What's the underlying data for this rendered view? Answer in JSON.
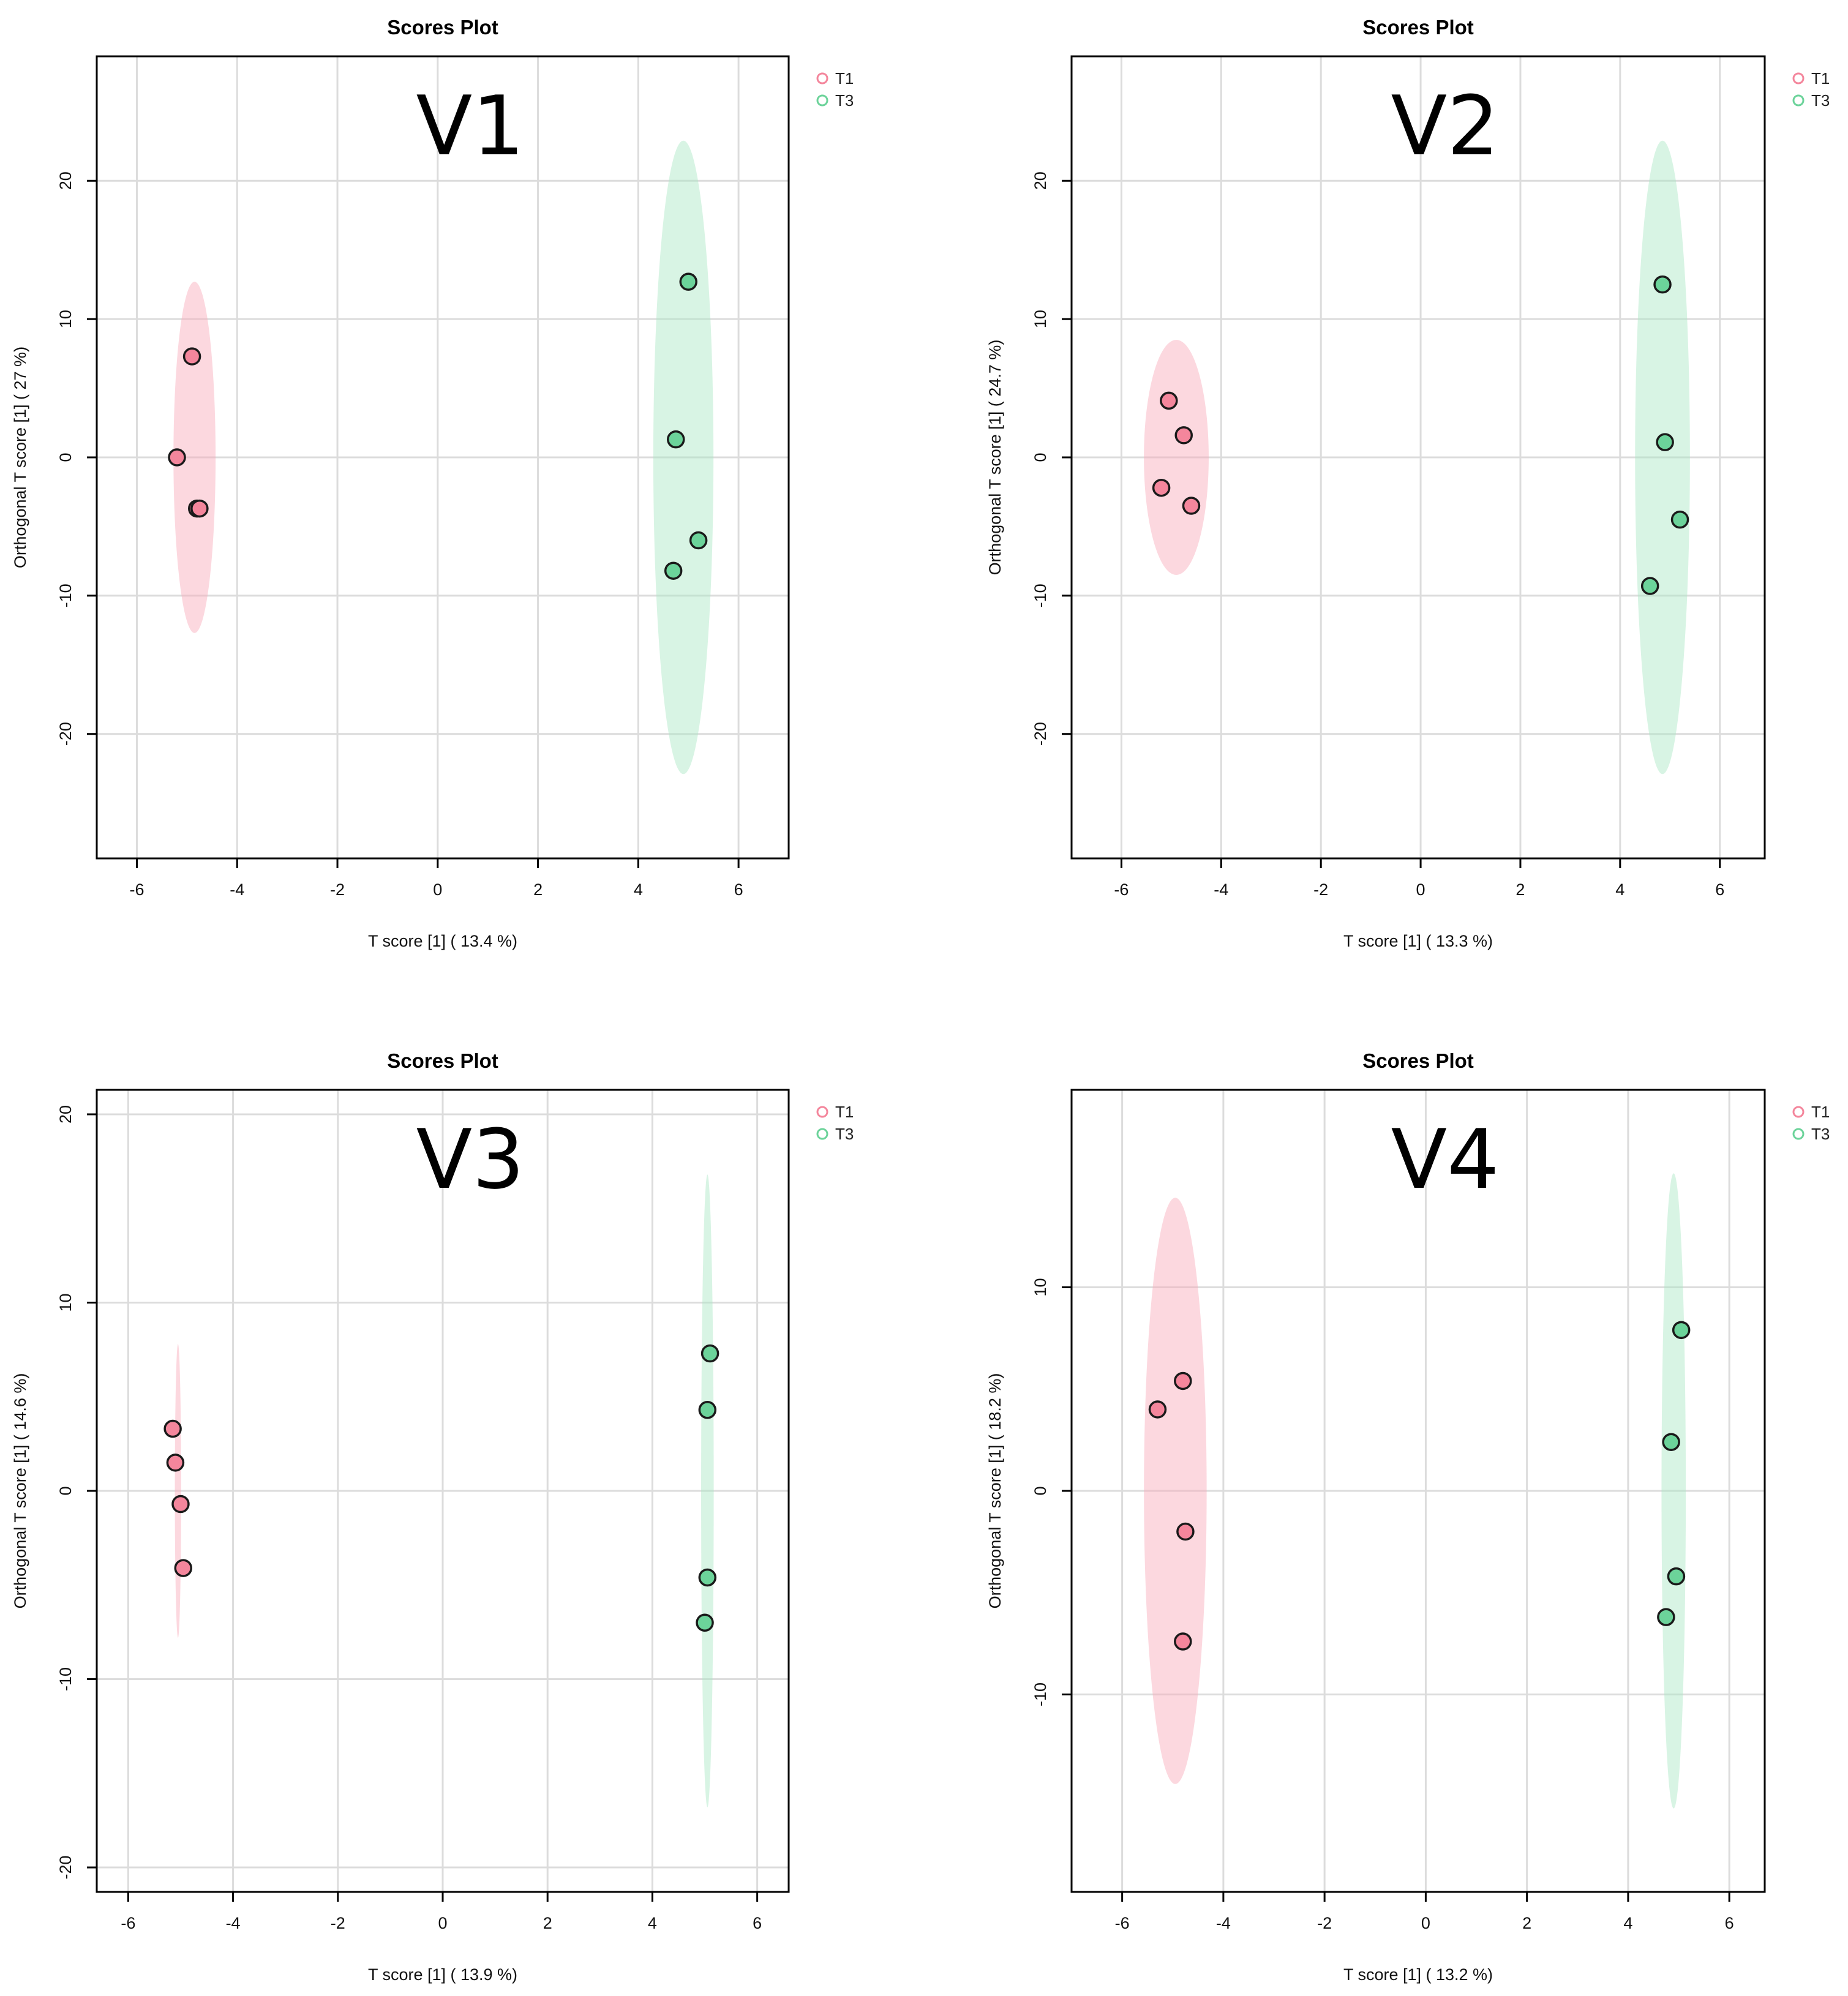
{
  "chart_data": [
    {
      "type": "scatter",
      "title": "Scores Plot",
      "panel_label": "V1",
      "xlabel": "T score [1] ( 13.4 %)",
      "ylabel": "Orthogonal T score [1] ( 27 %)",
      "xlim": [
        -6.8,
        7.0
      ],
      "ylim": [
        -29,
        29
      ],
      "xticks": [
        -6,
        -4,
        -2,
        0,
        2,
        4,
        6
      ],
      "yticks": [
        -20,
        -10,
        0,
        10,
        20
      ],
      "grid": true,
      "legend": {
        "position": "top-right",
        "entries": [
          "T1",
          "T3"
        ]
      },
      "series": [
        {
          "name": "T1",
          "color": "#f4869c",
          "fill": "#f8a8b8",
          "ellipse": {
            "cx": -4.85,
            "cy": 0,
            "rx": 0.42,
            "ry": 12.7
          },
          "points": [
            {
              "x": -4.9,
              "y": 7.3
            },
            {
              "x": -5.2,
              "y": 0
            },
            {
              "x": -4.8,
              "y": -3.7
            },
            {
              "x": -4.75,
              "y": -3.7
            }
          ]
        },
        {
          "name": "T3",
          "color": "#6cd39a",
          "fill": "#a8e6c4",
          "ellipse": {
            "cx": 4.9,
            "cy": 0,
            "rx": 0.6,
            "ry": 22.9
          },
          "points": [
            {
              "x": 5.0,
              "y": 12.7
            },
            {
              "x": 4.75,
              "y": 1.3
            },
            {
              "x": 5.2,
              "y": -6.0
            },
            {
              "x": 4.7,
              "y": -8.2
            }
          ]
        }
      ]
    },
    {
      "type": "scatter",
      "title": "Scores Plot",
      "panel_label": "V2",
      "xlabel": "T score [1] ( 13.3 %)",
      "ylabel": "Orthogonal T score [1] ( 24.7 %)",
      "xlim": [
        -7.0,
        6.9
      ],
      "ylim": [
        -29,
        29
      ],
      "xticks": [
        -6,
        -4,
        -2,
        0,
        2,
        4,
        6
      ],
      "yticks": [
        -20,
        -10,
        0,
        10,
        20
      ],
      "grid": true,
      "legend": {
        "position": "top-right",
        "entries": [
          "T1",
          "T3"
        ]
      },
      "series": [
        {
          "name": "T1",
          "color": "#f4869c",
          "fill": "#f8a8b8",
          "ellipse": {
            "cx": -4.9,
            "cy": 0,
            "rx": 0.65,
            "ry": 8.5
          },
          "points": [
            {
              "x": -5.05,
              "y": 4.1
            },
            {
              "x": -4.75,
              "y": 1.6
            },
            {
              "x": -5.2,
              "y": -2.2
            },
            {
              "x": -4.6,
              "y": -3.5
            }
          ]
        },
        {
          "name": "T3",
          "color": "#6cd39a",
          "fill": "#a8e6c4",
          "ellipse": {
            "cx": 4.85,
            "cy": 0,
            "rx": 0.55,
            "ry": 22.9
          },
          "points": [
            {
              "x": 4.85,
              "y": 12.5
            },
            {
              "x": 4.9,
              "y": 1.1
            },
            {
              "x": 5.2,
              "y": -4.5
            },
            {
              "x": 4.6,
              "y": -9.3
            }
          ]
        }
      ]
    },
    {
      "type": "scatter",
      "title": "Scores Plot",
      "panel_label": "V3",
      "xlabel": "T score [1] ( 13.9 %)",
      "ylabel": "Orthogonal T score [1] ( 14.6 %)",
      "xlim": [
        -6.6,
        6.6
      ],
      "ylim": [
        -21.3,
        21.3
      ],
      "xticks": [
        -6,
        -4,
        -2,
        0,
        2,
        4,
        6
      ],
      "yticks": [
        -20,
        -10,
        0,
        10,
        20
      ],
      "grid": true,
      "legend": {
        "position": "top-right",
        "entries": [
          "T1",
          "T3"
        ]
      },
      "series": [
        {
          "name": "T1",
          "color": "#f4869c",
          "fill": "#f8a8b8",
          "ellipse": {
            "cx": -5.05,
            "cy": 0,
            "rx": 0.06,
            "ry": 7.8
          },
          "points": [
            {
              "x": -5.15,
              "y": 3.3
            },
            {
              "x": -5.1,
              "y": 1.5
            },
            {
              "x": -5.0,
              "y": -0.7
            },
            {
              "x": -4.95,
              "y": -4.1
            }
          ]
        },
        {
          "name": "T3",
          "color": "#6cd39a",
          "fill": "#a8e6c4",
          "ellipse": {
            "cx": 5.05,
            "cy": 0,
            "rx": 0.12,
            "ry": 16.8
          },
          "points": [
            {
              "x": 5.1,
              "y": 7.3
            },
            {
              "x": 5.05,
              "y": 4.3
            },
            {
              "x": 5.05,
              "y": -4.6
            },
            {
              "x": 5.0,
              "y": -7.0
            }
          ]
        }
      ]
    },
    {
      "type": "scatter",
      "title": "Scores Plot",
      "panel_label": "V4",
      "xlabel": "T score [1] ( 13.2 %)",
      "ylabel": "Orthogonal T score [1] ( 18.2 %)",
      "xlim": [
        -7.0,
        6.7
      ],
      "ylim": [
        -19.7,
        19.7
      ],
      "xticks": [
        -6,
        -4,
        -2,
        0,
        2,
        4,
        6
      ],
      "yticks": [
        -10,
        0,
        10
      ],
      "grid": true,
      "legend": {
        "position": "top-right",
        "entries": [
          "T1",
          "T3"
        ]
      },
      "series": [
        {
          "name": "T1",
          "color": "#f4869c",
          "fill": "#f8a8b8",
          "ellipse": {
            "cx": -4.95,
            "cy": 0,
            "rx": 0.62,
            "ry": 14.4
          },
          "points": [
            {
              "x": -5.3,
              "y": 4.0
            },
            {
              "x": -4.8,
              "y": 5.4
            },
            {
              "x": -4.75,
              "y": -2.0
            },
            {
              "x": -4.8,
              "y": -7.4
            }
          ]
        },
        {
          "name": "T3",
          "color": "#6cd39a",
          "fill": "#a8e6c4",
          "ellipse": {
            "cx": 4.9,
            "cy": 0,
            "rx": 0.24,
            "ry": 15.6
          },
          "points": [
            {
              "x": 5.05,
              "y": 7.9
            },
            {
              "x": 4.85,
              "y": 2.4
            },
            {
              "x": 4.95,
              "y": -4.2
            },
            {
              "x": 4.75,
              "y": -6.2
            }
          ]
        }
      ]
    }
  ]
}
